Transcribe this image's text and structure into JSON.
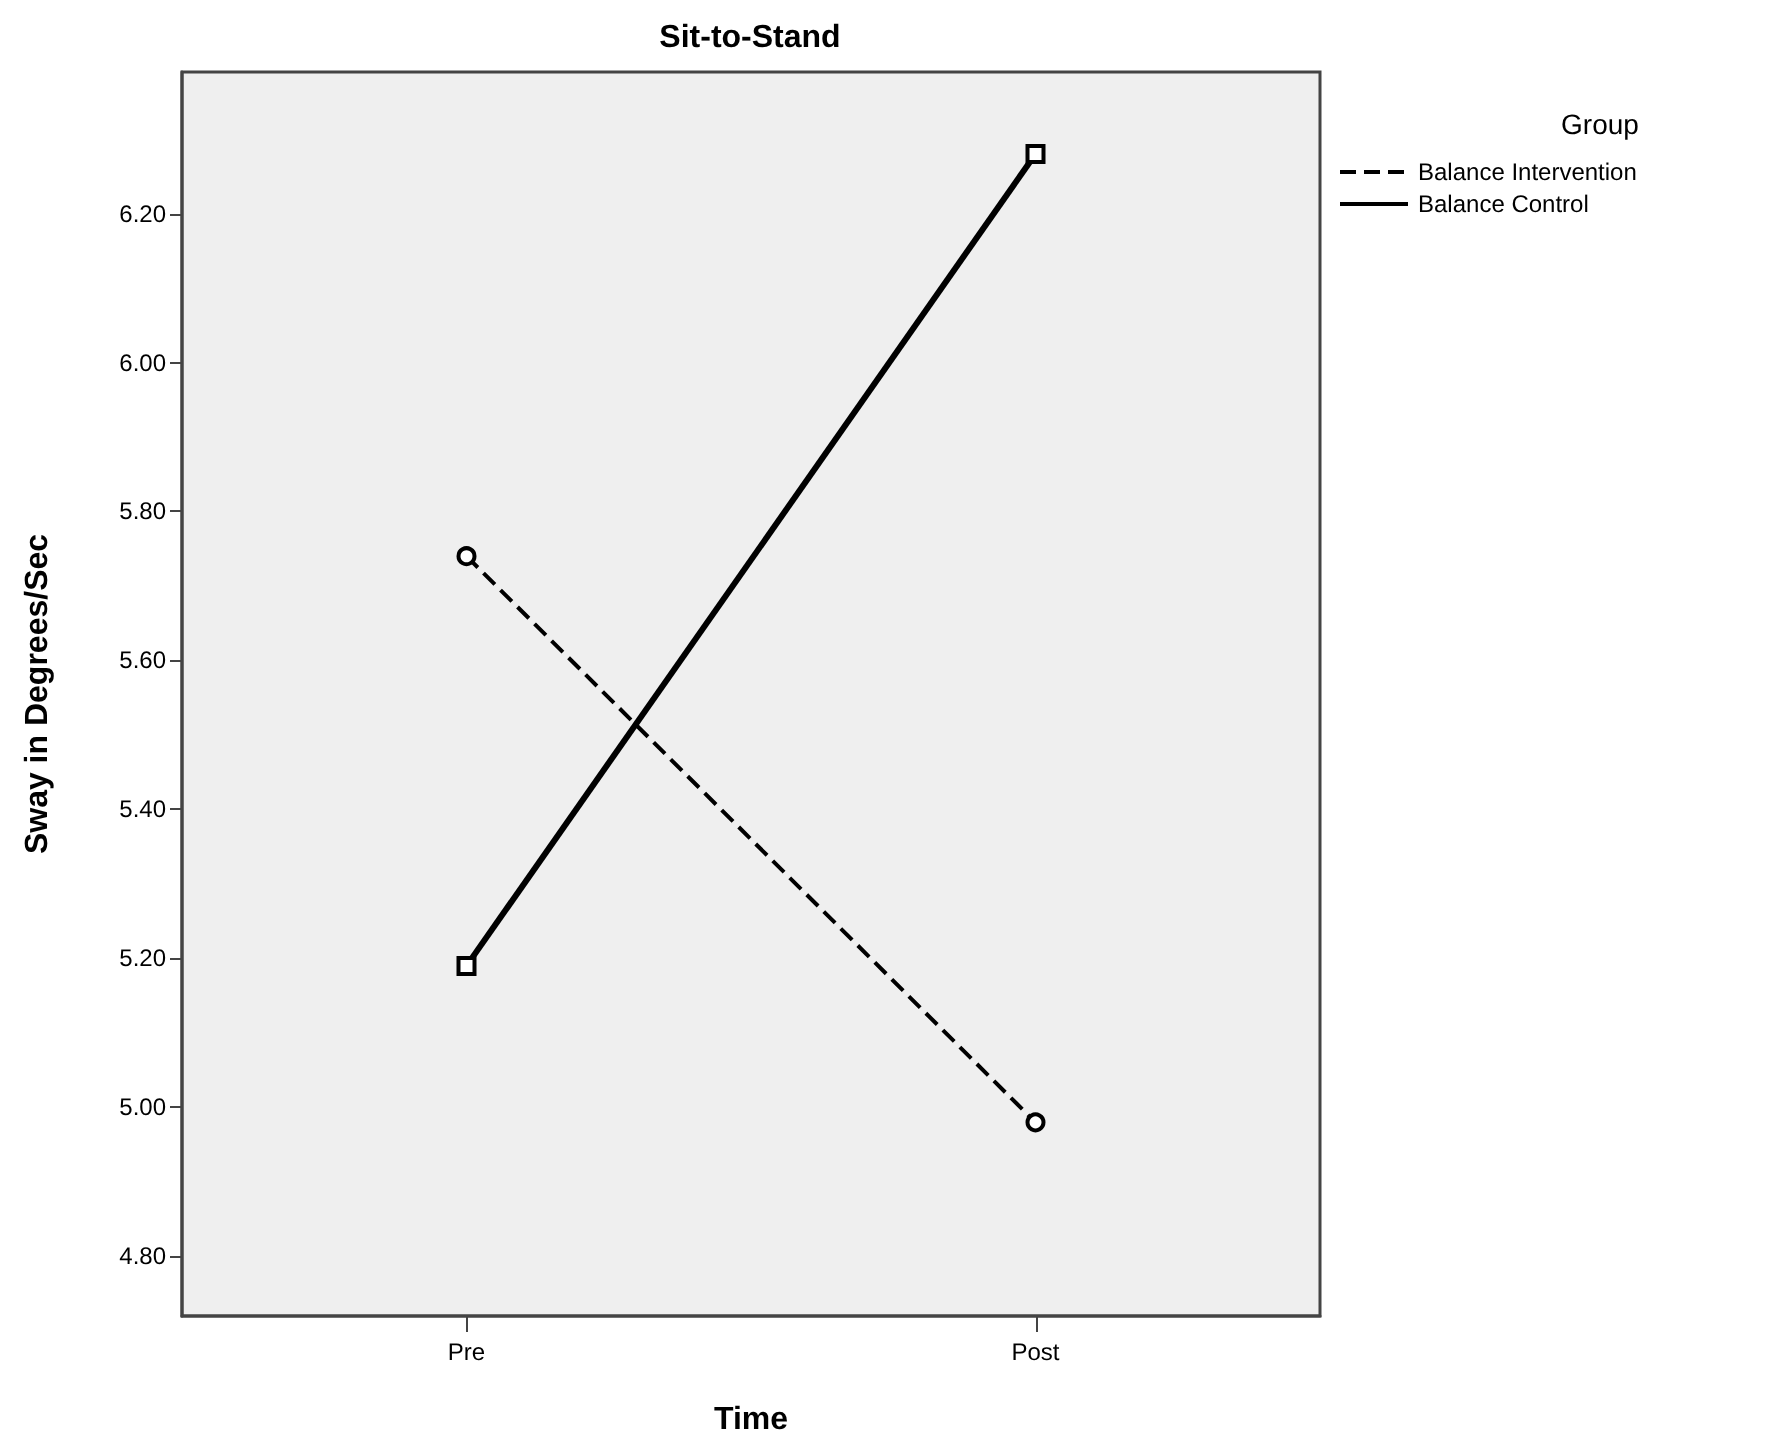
{
  "chart_data": {
    "type": "line",
    "title": "Sit-to-Stand",
    "xlabel": "Time",
    "ylabel": "Sway in Degrees/Sec",
    "legend_title": "Group",
    "categories": [
      "Pre",
      "Post"
    ],
    "series": [
      {
        "name": "Balance Intervention",
        "color": "#000000",
        "values": [
          5.74,
          4.98
        ],
        "line_style": "dashed",
        "marker": "circle"
      },
      {
        "name": "Balance Control",
        "color": "#000000",
        "values": [
          5.19,
          6.28
        ],
        "line_style": "solid",
        "marker": "square"
      }
    ],
    "ylim": [
      4.72,
      6.39
    ],
    "yticks": [
      {
        "value": 4.8,
        "label": "4.80"
      },
      {
        "value": 5.0,
        "label": "5.00"
      },
      {
        "value": 5.2,
        "label": "5.20"
      },
      {
        "value": 5.4,
        "label": "5.40"
      },
      {
        "value": 5.6,
        "label": "5.60"
      },
      {
        "value": 5.8,
        "label": "5.80"
      },
      {
        "value": 6.0,
        "label": "6.00"
      },
      {
        "value": 6.2,
        "label": "6.20"
      }
    ],
    "grid": false,
    "legend": "right"
  }
}
